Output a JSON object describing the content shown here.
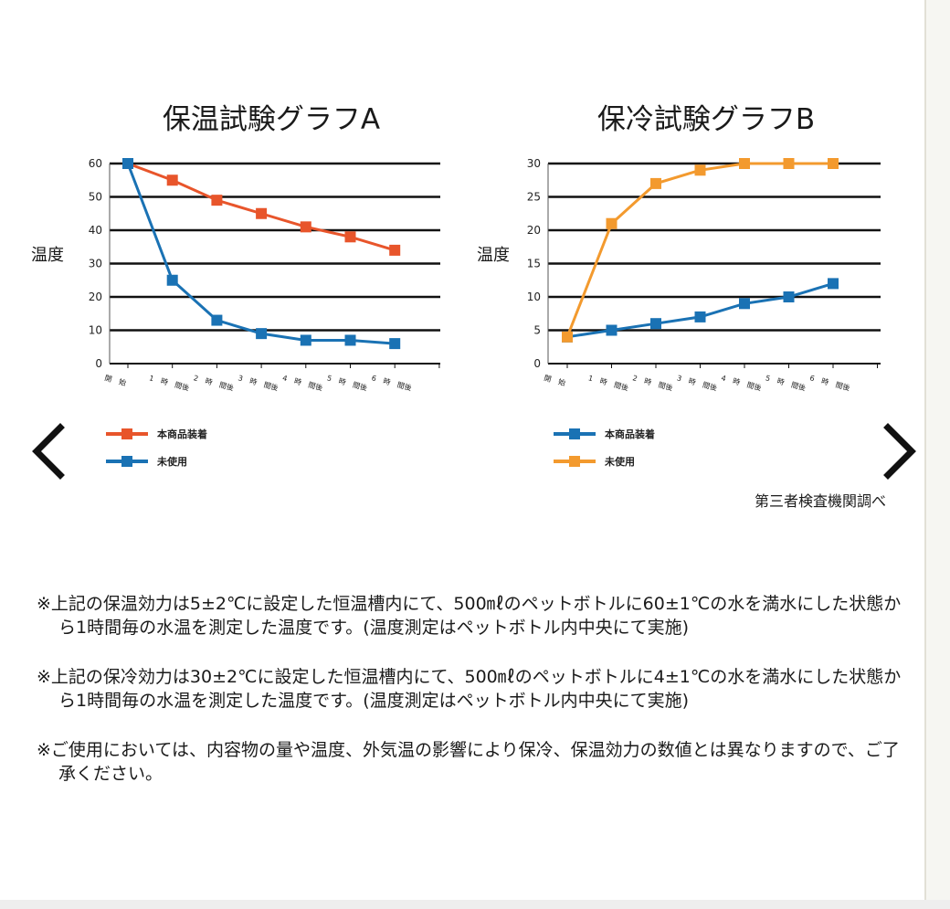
{
  "chart_data": [
    {
      "type": "line",
      "title": "保温試験グラフA",
      "ylabel": "温度",
      "xlabel": "",
      "ylim": [
        0,
        60
      ],
      "yticks": [
        "0",
        "10",
        "20",
        "30",
        "40",
        "50",
        "60"
      ],
      "categories": [
        "開　始",
        "1　時　間後",
        "2　時　間後",
        "3　時　間後",
        "4　時　間後",
        "5　時　間後",
        "6　時　間後"
      ],
      "grid": true,
      "legend_position": "bottom-left",
      "series": [
        {
          "name": "本商品装着",
          "color": "#e8552b",
          "values": [
            60,
            55,
            49,
            45,
            41,
            38,
            34
          ]
        },
        {
          "name": "未使用",
          "color": "#1a72b4",
          "values": [
            60,
            25,
            13,
            9,
            7,
            7,
            6
          ]
        }
      ]
    },
    {
      "type": "line",
      "title": "保冷試験グラフB",
      "ylabel": "温度",
      "xlabel": "",
      "ylim": [
        0,
        30
      ],
      "yticks": [
        "0",
        "5",
        "10",
        "15",
        "20",
        "25",
        "30"
      ],
      "categories": [
        "開　始",
        "1　時　間後",
        "2　時　間後",
        "3　時　間後",
        "4　時　間後",
        "5　時　間後",
        "6　時　間後"
      ],
      "grid": true,
      "legend_position": "bottom-left",
      "series": [
        {
          "name": "本商品装着",
          "color": "#1a72b4",
          "values": [
            4,
            5,
            6,
            7,
            9,
            10,
            12
          ]
        },
        {
          "name": "未使用",
          "color": "#f39a2e",
          "values": [
            4,
            21,
            27,
            29,
            30,
            30,
            30
          ]
        }
      ]
    }
  ],
  "source_note": "第三者検査機関調べ",
  "notes": [
    "※上記の保温効力は5±2℃に設定した恒温槽内にて、500㎖のペットボトルに60±1℃の水を満水にした状態から1時間毎の水温を測定した温度です。(温度測定はペットボトル内中央にて実施)",
    "※上記の保冷効力は30±2℃に設定した恒温槽内にて、500㎖のペットボトルに4±1℃の水を満水にした状態から1時間毎の水温を測定した温度です。(温度測定はペットボトル内中央にて実施)",
    "※ご使用においては、内容物の量や温度、外気温の影響により保冷、保温効力の数値とは異なりますので、ご了承ください。"
  ],
  "icons": {
    "prev": "chevron-left-icon",
    "next": "chevron-right-icon"
  }
}
